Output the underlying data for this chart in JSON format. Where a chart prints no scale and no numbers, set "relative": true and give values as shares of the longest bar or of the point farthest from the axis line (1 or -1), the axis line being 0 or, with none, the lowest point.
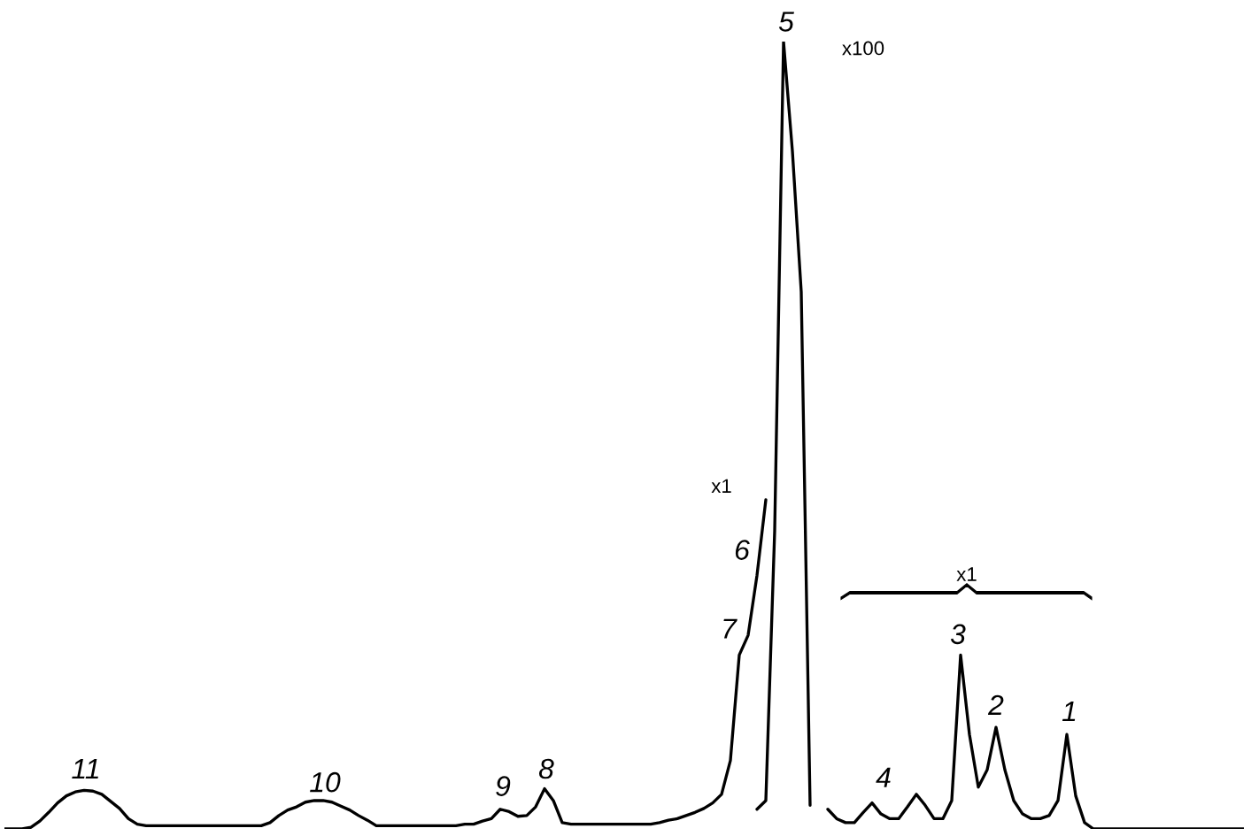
{
  "chart_data": {
    "type": "line",
    "relative": true,
    "categories": [
      null,
      null,
      null,
      null,
      null,
      null,
      null,
      null,
      null,
      null,
      null,
      null,
      null,
      null,
      null,
      null,
      null,
      null,
      null,
      null,
      null,
      null,
      null,
      null,
      null,
      null,
      null,
      null,
      null,
      null,
      null,
      null,
      null,
      null,
      null,
      null,
      null,
      null,
      null,
      null,
      null,
      null,
      null,
      null,
      null,
      null,
      null,
      null,
      null,
      null,
      null,
      null,
      null,
      null,
      null,
      null,
      null,
      null,
      null,
      null,
      null,
      null,
      null,
      null,
      null,
      null,
      null,
      null,
      null,
      null,
      null,
      null,
      null,
      null,
      null,
      null,
      null,
      null,
      null,
      null,
      null,
      null,
      null,
      null,
      null,
      null,
      null,
      null,
      null,
      null,
      null,
      null,
      null,
      null,
      null,
      null,
      null,
      null,
      null,
      null,
      null,
      null,
      null,
      null,
      null,
      null,
      null,
      null,
      null,
      null,
      null,
      null,
      null,
      null,
      null,
      null,
      null,
      null,
      null,
      null,
      null,
      null,
      null,
      null,
      null,
      null,
      null,
      null,
      null,
      null,
      null,
      null,
      null,
      null,
      null,
      null,
      null,
      null,
      null,
      null,
      null
    ],
    "series": [
      {
        "color": "#000000",
        "values": [
          0,
          0,
          0,
          0.002,
          0.01,
          0.021,
          0.033,
          0.042,
          0.047,
          0.049,
          0.048,
          0.044,
          0.035,
          0.026,
          0.013,
          0.006,
          0.004,
          0.004,
          0.004,
          0.004,
          0.004,
          0.004,
          0.004,
          0.004,
          0.004,
          0.004,
          0.004,
          0.004,
          0.004,
          0.004,
          0.008,
          0.017,
          0.024,
          0.028,
          0.034,
          0.036,
          0.036,
          0.034,
          0.029,
          0.024,
          0.017,
          0.011,
          0.004,
          0.004,
          0.004,
          0.004,
          0.004,
          0.004,
          0.004,
          0.004,
          0.004,
          0.004,
          0.006,
          0.006,
          0.01,
          0.013,
          0.025,
          0.022,
          0.016,
          0.017,
          0.028,
          0.051,
          0.036,
          0.008,
          0.006,
          0.006,
          0.006,
          0.006,
          0.006,
          0.006,
          0.006,
          0.006,
          0.006,
          0.006,
          0.008,
          0.011,
          0.013,
          0.017,
          0.021,
          0.026,
          0.033,
          0.044,
          0.087,
          0.221,
          0.246,
          0.322,
          0.418,
          null,
          null,
          null,
          null,
          null,
          null,
          null,
          null,
          null,
          null,
          null,
          null,
          null,
          null,
          null,
          null,
          null,
          null,
          null,
          null,
          null,
          null,
          null,
          null,
          null,
          null,
          null,
          null,
          null,
          null,
          null,
          null,
          null,
          null,
          null,
          null,
          null,
          null,
          null,
          null,
          null,
          null,
          null,
          null,
          null,
          null,
          null,
          null,
          null,
          null,
          null,
          null,
          null,
          null
        ]
      },
      {
        "color": "#000000",
        "values": [
          null,
          null,
          null,
          null,
          null,
          null,
          null,
          null,
          null,
          null,
          null,
          null,
          null,
          null,
          null,
          null,
          null,
          null,
          null,
          null,
          null,
          null,
          null,
          null,
          null,
          null,
          null,
          null,
          null,
          null,
          null,
          null,
          null,
          null,
          null,
          null,
          null,
          null,
          null,
          null,
          null,
          null,
          null,
          null,
          null,
          null,
          null,
          null,
          null,
          null,
          null,
          null,
          null,
          null,
          null,
          null,
          null,
          null,
          null,
          null,
          null,
          null,
          null,
          null,
          null,
          null,
          null,
          null,
          null,
          null,
          null,
          null,
          null,
          null,
          null,
          null,
          null,
          null,
          null,
          null,
          null,
          null,
          null,
          null,
          null,
          0.025,
          0.036,
          0.379,
          1.0,
          0.861,
          0.682,
          0.03,
          null,
          null,
          null,
          null,
          null,
          null,
          null,
          null,
          null,
          null,
          null,
          null,
          null,
          null,
          null,
          null,
          null,
          null,
          null,
          null,
          null,
          null,
          null,
          null,
          null,
          null,
          null,
          null,
          null,
          null,
          null,
          null,
          null,
          null,
          null,
          null,
          null,
          null,
          null,
          null,
          null,
          null,
          null,
          null,
          null,
          null,
          null,
          null,
          null
        ]
      },
      {
        "color": "#000000",
        "values": [
          null,
          null,
          null,
          null,
          null,
          null,
          null,
          null,
          null,
          null,
          null,
          null,
          null,
          null,
          null,
          null,
          null,
          null,
          null,
          null,
          null,
          null,
          null,
          null,
          null,
          null,
          null,
          null,
          null,
          null,
          null,
          null,
          null,
          null,
          null,
          null,
          null,
          null,
          null,
          null,
          null,
          null,
          null,
          null,
          null,
          null,
          null,
          null,
          null,
          null,
          null,
          null,
          null,
          null,
          null,
          null,
          null,
          null,
          null,
          null,
          null,
          null,
          null,
          null,
          null,
          null,
          null,
          null,
          null,
          null,
          null,
          null,
          null,
          null,
          null,
          null,
          null,
          null,
          null,
          null,
          null,
          null,
          null,
          null,
          null,
          null,
          null,
          null,
          null,
          null,
          null,
          null,
          null,
          0.025,
          0.013,
          0.008,
          0.008,
          0.021,
          0.033,
          0.019,
          0.013,
          0.013,
          0.028,
          0.044,
          0.03,
          0.013,
          0.013,
          0.036,
          0.221,
          0.12,
          0.053,
          0.075,
          0.129,
          0.075,
          0.036,
          0.019,
          0.013,
          0.013,
          0.017,
          0.036,
          0.12,
          0.042,
          0.008,
          0,
          0,
          0,
          0,
          0,
          0,
          0,
          0,
          0,
          0,
          0,
          0,
          0,
          0,
          0,
          0,
          0,
          0
        ]
      }
    ],
    "annotations": [
      "11",
      "10",
      "9",
      "8",
      "7",
      "6",
      "5",
      "4",
      "3",
      "2",
      "1",
      "x100",
      "x1",
      "x1"
    ]
  }
}
